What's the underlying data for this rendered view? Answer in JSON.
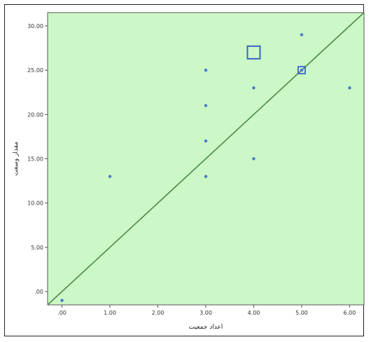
{
  "chart_data": {
    "type": "scatter",
    "xlabel": "اعداد جمعيت",
    "ylabel": "مقدار وسعت",
    "xlim": [
      -0.3,
      6.3
    ],
    "ylim": [
      -1.5,
      31.5
    ],
    "x_ticks": [
      0,
      1,
      2,
      3,
      4,
      5,
      6
    ],
    "y_ticks": [
      0,
      5,
      10,
      15,
      20,
      25,
      30
    ],
    "x_tick_labels": [
      ".00",
      "1.00",
      "2.00",
      "3.00",
      "4.00",
      "5.00",
      "6.00"
    ],
    "y_tick_labels": [
      ".00",
      "5.00",
      "10.00",
      "15.00",
      "20.00",
      "25.00",
      "30.00"
    ],
    "points": [
      {
        "x": 0,
        "y": -1
      },
      {
        "x": 1,
        "y": 13
      },
      {
        "x": 3,
        "y": 25
      },
      {
        "x": 3,
        "y": 21
      },
      {
        "x": 3,
        "y": 17
      },
      {
        "x": 3,
        "y": 13
      },
      {
        "x": 4,
        "y": 23
      },
      {
        "x": 4,
        "y": 15
      },
      {
        "x": 5,
        "y": 29
      },
      {
        "x": 6,
        "y": 23
      }
    ],
    "sunflower_markers": [
      {
        "x": 4,
        "y": 27,
        "size": "large"
      },
      {
        "x": 5,
        "y": 25,
        "size": "small"
      }
    ],
    "reference_line": {
      "from": [
        -0.3,
        -1.5
      ],
      "to": [
        6.3,
        31.5
      ]
    },
    "grid": false,
    "colors": {
      "plot_background": "#ccf7c7",
      "point": "#4a78c8",
      "marker": "#3a66c4",
      "line": "#4a8a4a",
      "axis": "#555555"
    }
  }
}
